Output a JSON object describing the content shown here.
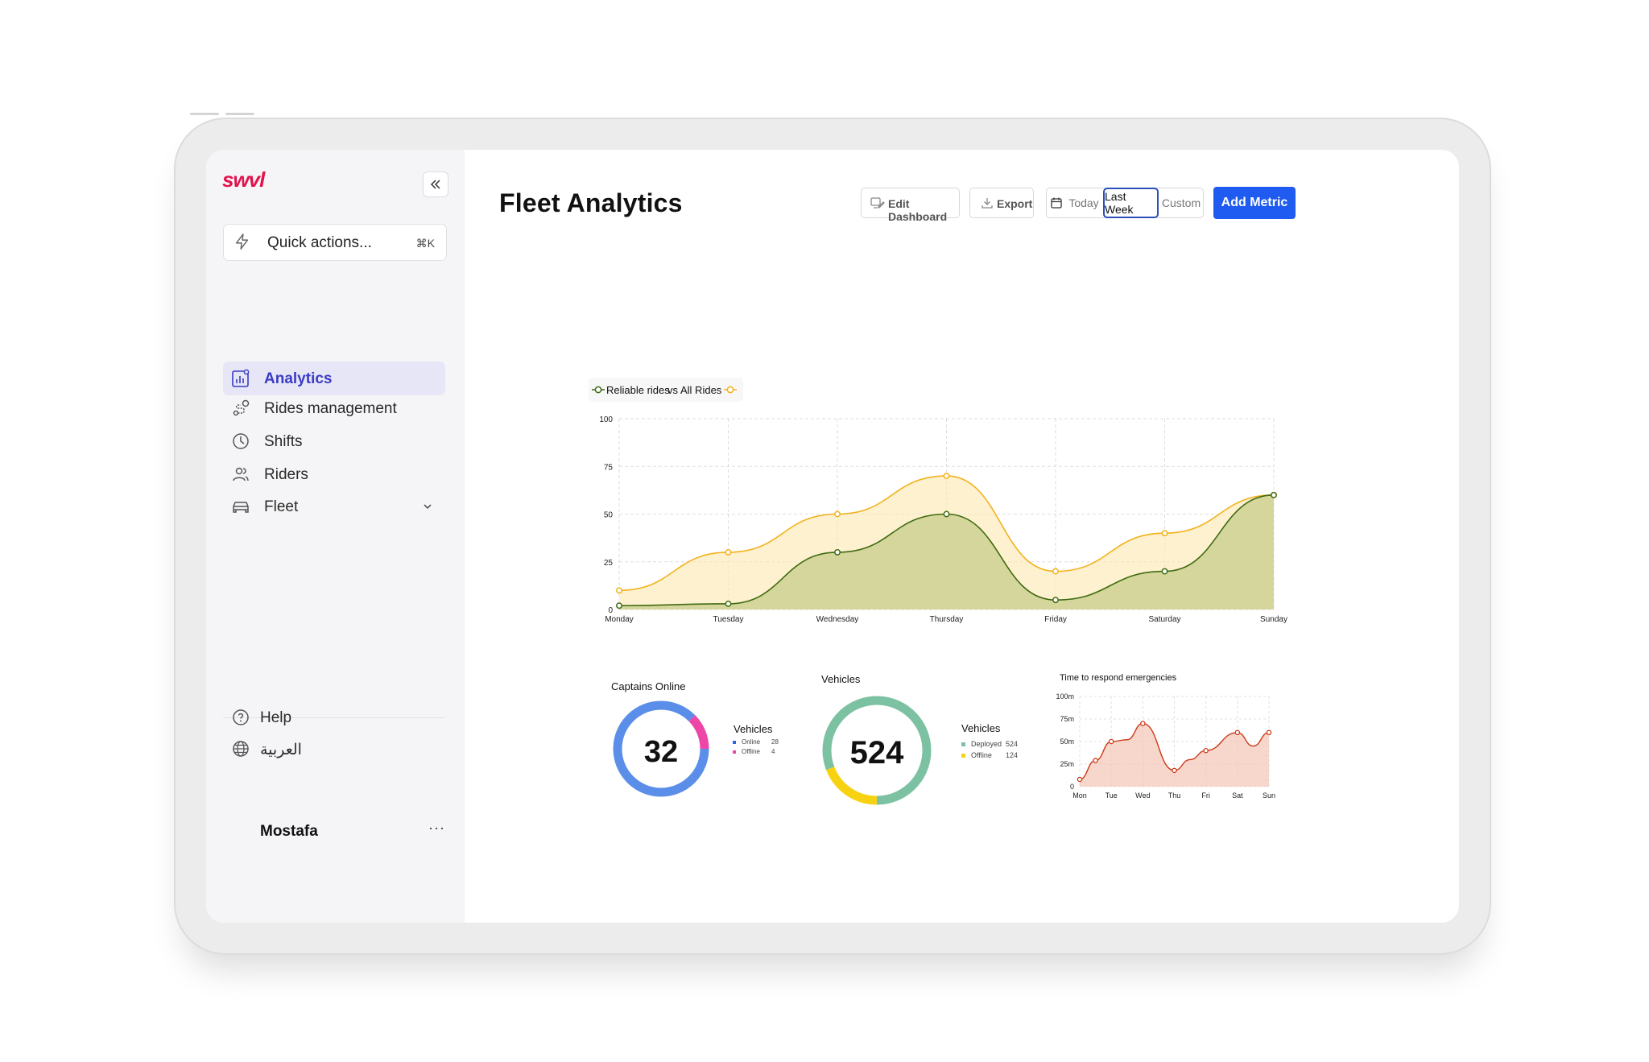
{
  "app": {
    "brand": "SWVL"
  },
  "sidebar": {
    "quick_actions": {
      "label": "Quick actions...",
      "shortcut": "⌘K"
    },
    "items": [
      {
        "label": "Analytics",
        "icon": "chart-icon",
        "active": true
      },
      {
        "label": "Rides management",
        "icon": "route-icon"
      },
      {
        "label": "Shifts",
        "icon": "clock-icon"
      },
      {
        "label": "Riders",
        "icon": "users-icon"
      },
      {
        "label": "Fleet",
        "icon": "car-icon"
      }
    ],
    "help": "Help",
    "language": "العربية",
    "user": "Mostafa",
    "more": "···"
  },
  "header": {
    "title": "Fleet Analytics",
    "edit_dashboard": "Edit Dashboard",
    "export": "Export",
    "range": {
      "today": "Today",
      "last_week": "Last Week",
      "custom": "Custom",
      "selected": "Last Week"
    },
    "add_metric": "Add Metric"
  },
  "colors": {
    "accent": "#1f5bf0",
    "brand": "#e3124b",
    "reliable": "#3f6b12",
    "all": "#f2b21c",
    "online": "#5b8ee9",
    "offline_captains": "#ee46a7",
    "deployed": "#7dc1a3",
    "offline_vehicles": "#f7d211",
    "emergency": "#cc3a16"
  },
  "chart_data": [
    {
      "type": "area",
      "title": "",
      "legend_text": {
        "series_a": "Reliable rides",
        "vs": "vs",
        "series_b": "All Rides"
      },
      "categories": [
        "Monday",
        "Tuesday",
        "Wednesday",
        "Thursday",
        "Friday",
        "Saturday",
        "Sunday"
      ],
      "series": [
        {
          "name": "Reliable rides",
          "values": [
            2,
            3,
            30,
            50,
            5,
            20,
            60
          ]
        },
        {
          "name": "All Rides",
          "values": [
            10,
            30,
            50,
            70,
            20,
            40,
            60
          ]
        }
      ],
      "ylim": [
        0,
        100
      ],
      "yticks": [
        "0",
        "25",
        "50",
        "75",
        "100"
      ],
      "grid": true,
      "legend_position": "top-left"
    },
    {
      "type": "pie",
      "title": "Captains Online",
      "center_label": "32",
      "legend_title": "Vehicles",
      "slices": [
        {
          "name": "Online",
          "value": 28,
          "value_label": "28"
        },
        {
          "name": "Offline",
          "value": 4,
          "value_label": "4"
        }
      ]
    },
    {
      "type": "pie",
      "title": "Vehicles",
      "center_label": "524",
      "legend_title": "Vehicles",
      "slices": [
        {
          "name": "Deployed",
          "value": 524,
          "value_label": "524"
        },
        {
          "name": "Offline",
          "value": 124,
          "value_label": "124"
        }
      ]
    },
    {
      "type": "area",
      "title": "Time to respond emergencies",
      "categories": [
        "Mon",
        "Tue",
        "Wed",
        "Thu",
        "Fri",
        "Sat",
        "Sun"
      ],
      "x": [
        0,
        0.5,
        1,
        1.5,
        2,
        3,
        3.5,
        4,
        5,
        5.5,
        6
      ],
      "values": [
        8,
        29,
        50,
        52,
        70,
        18,
        30,
        40,
        60,
        45,
        60
      ],
      "ylim": [
        0,
        100
      ],
      "yticks": [
        "0",
        "25m",
        "50m",
        "75m",
        "100m"
      ],
      "grid": true
    }
  ]
}
